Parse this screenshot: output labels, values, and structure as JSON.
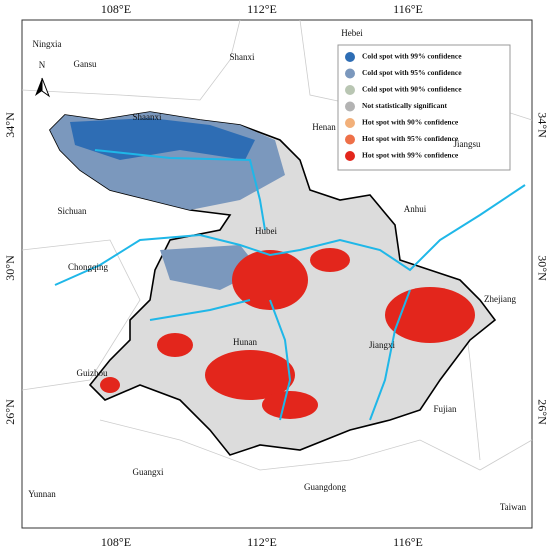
{
  "map": {
    "lon_labels_top": [
      "108°E",
      "112°E",
      "116°E"
    ],
    "lon_labels_bottom": [
      "108°E",
      "112°E",
      "116°E"
    ],
    "lat_labels_left": [
      "34°N",
      "30°N",
      "26°N"
    ],
    "lat_labels_right": [
      "34°N",
      "30°N",
      "26°N"
    ],
    "north_arrow": "N",
    "regions": [
      "Ningxia",
      "Gansu",
      "Shanxi",
      "Hebei",
      "Henan",
      "Shaanxi",
      "Jiangsu",
      "Sichuan",
      "Anhui",
      "Hubei",
      "Chongqing",
      "Zhejiang",
      "Hunan",
      "Jiangxi",
      "Guizhou",
      "Fujian",
      "Guangxi",
      "Guangdong",
      "Yunnan",
      "Taiwan"
    ],
    "legend": [
      {
        "label": "Cold spot with 99% confidence",
        "color": "#2e6db4"
      },
      {
        "label": "Cold spot with 95% confidence",
        "color": "#7b98bd"
      },
      {
        "label": "Cold spot with 90% confidence",
        "color": "#b9c6b3"
      },
      {
        "label": "Not statistically significant",
        "color": "#b3b3b3"
      },
      {
        "label": "Hot spot with 90% confidence",
        "color": "#f2b07a"
      },
      {
        "label": "Hot spot with 95% confidence",
        "color": "#ee7048"
      },
      {
        "label": "Hot spot with 99% confidence",
        "color": "#e3261c"
      }
    ]
  }
}
